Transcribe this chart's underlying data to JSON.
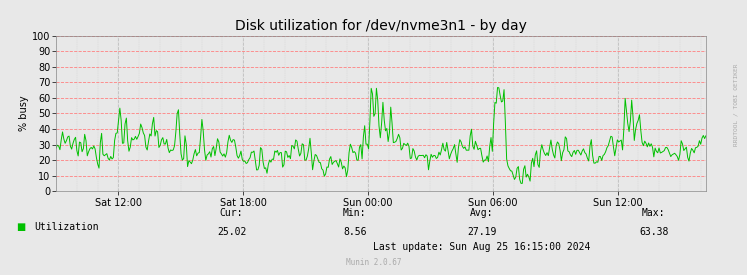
{
  "title": "Disk utilization for /dev/nvme3n1 - by day",
  "ylabel": "% busy",
  "ylim": [
    0,
    100
  ],
  "yticks": [
    0,
    10,
    20,
    30,
    40,
    50,
    60,
    70,
    80,
    90,
    100
  ],
  "xtick_labels": [
    "Sat 12:00",
    "Sat 18:00",
    "Sun 00:00",
    "Sun 06:00",
    "Sun 12:00"
  ],
  "xtick_hours": [
    3,
    9,
    15,
    21,
    27
  ],
  "total_hours": 31.25,
  "line_color": "#00c000",
  "bg_color": "#e8e8e8",
  "plot_bg_color": "#e8e8e8",
  "grid_color_h": "#ff8080",
  "grid_color_v": "#c0c0c0",
  "legend_label": "Utilization",
  "legend_color": "#00c000",
  "stats_cur_label": "Cur:",
  "stats_min_label": "Min:",
  "stats_avg_label": "Avg:",
  "stats_max_label": "Max:",
  "stats_cur": "25.02",
  "stats_min": "8.56",
  "stats_avg": "27.19",
  "stats_max": "63.38",
  "last_update": "Last update: Sun Aug 25 16:15:00 2024",
  "munin_version": "Munin 2.0.67",
  "watermark": "RRDTOOL / TOBI OETIKER",
  "title_fontsize": 10,
  "axis_fontsize": 7,
  "stats_fontsize": 7,
  "num_points": 500,
  "random_seed": 12345
}
